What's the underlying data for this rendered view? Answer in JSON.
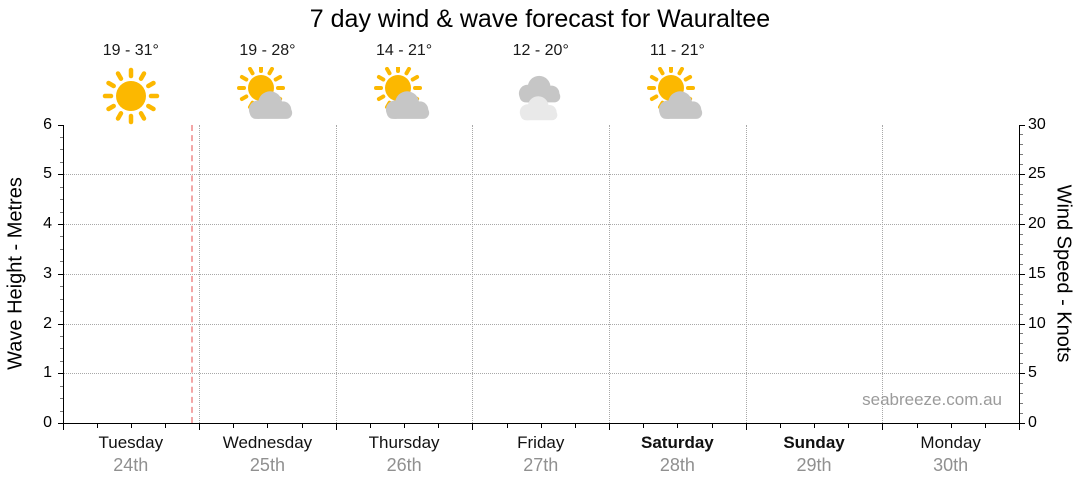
{
  "title": "7 day wind & wave forecast for Wauraltee",
  "watermark": "seabreeze.com.au",
  "chart_data": {
    "type": "line",
    "description": "7-day wind and wave forecast chart frame; no wave/wind series points are plotted in the visible chart area",
    "days": [
      {
        "name": "Tuesday",
        "date": "24th",
        "temp_range": "19 - 31°",
        "icon": "sunny",
        "weekend": false
      },
      {
        "name": "Wednesday",
        "date": "25th",
        "temp_range": "19 - 28°",
        "icon": "partly-cloudy",
        "weekend": false
      },
      {
        "name": "Thursday",
        "date": "26th",
        "temp_range": "14 - 21°",
        "icon": "partly-cloudy",
        "weekend": false
      },
      {
        "name": "Friday",
        "date": "27th",
        "temp_range": "12 - 20°",
        "icon": "cloudy",
        "weekend": false
      },
      {
        "name": "Saturday",
        "date": "28th",
        "temp_range": "11 - 21°",
        "icon": "partly-cloudy",
        "weekend": true
      },
      {
        "name": "Sunday",
        "date": "29th",
        "temp_range": null,
        "icon": null,
        "weekend": true
      },
      {
        "name": "Monday",
        "date": "30th",
        "temp_range": null,
        "icon": null,
        "weekend": false
      }
    ],
    "series": [],
    "left_axis": {
      "label": "Wave Height - Metres",
      "min": 0,
      "max": 6,
      "major_step": 1,
      "minor_step": 0.25,
      "tick_labels": [
        "0",
        "1",
        "2",
        "3",
        "4",
        "5",
        "6"
      ]
    },
    "right_axis": {
      "label": "Wind Speed - Knots",
      "min": 0,
      "max": 30,
      "major_step": 5,
      "minor_step": 1,
      "tick_labels": [
        "0",
        "5",
        "10",
        "15",
        "20",
        "25",
        "30"
      ]
    },
    "x_axis": {
      "minor_ticks_per_day": 4,
      "grid": "dotted line at each day boundary"
    },
    "now_marker": {
      "day_fraction": 0.94,
      "style": "dashed"
    },
    "grid": true,
    "legend": false,
    "colors": {
      "sun": "#fcb800",
      "cloud": "#c6c6c6",
      "cloud_light": "#e9e9e9",
      "grid": "#a8a8a8",
      "minor_tick": "#7a7a7a",
      "date_text": "#909090",
      "watermark": "#9b9b9b",
      "now_line": "#f3a6a6",
      "axis": "#000000"
    }
  }
}
